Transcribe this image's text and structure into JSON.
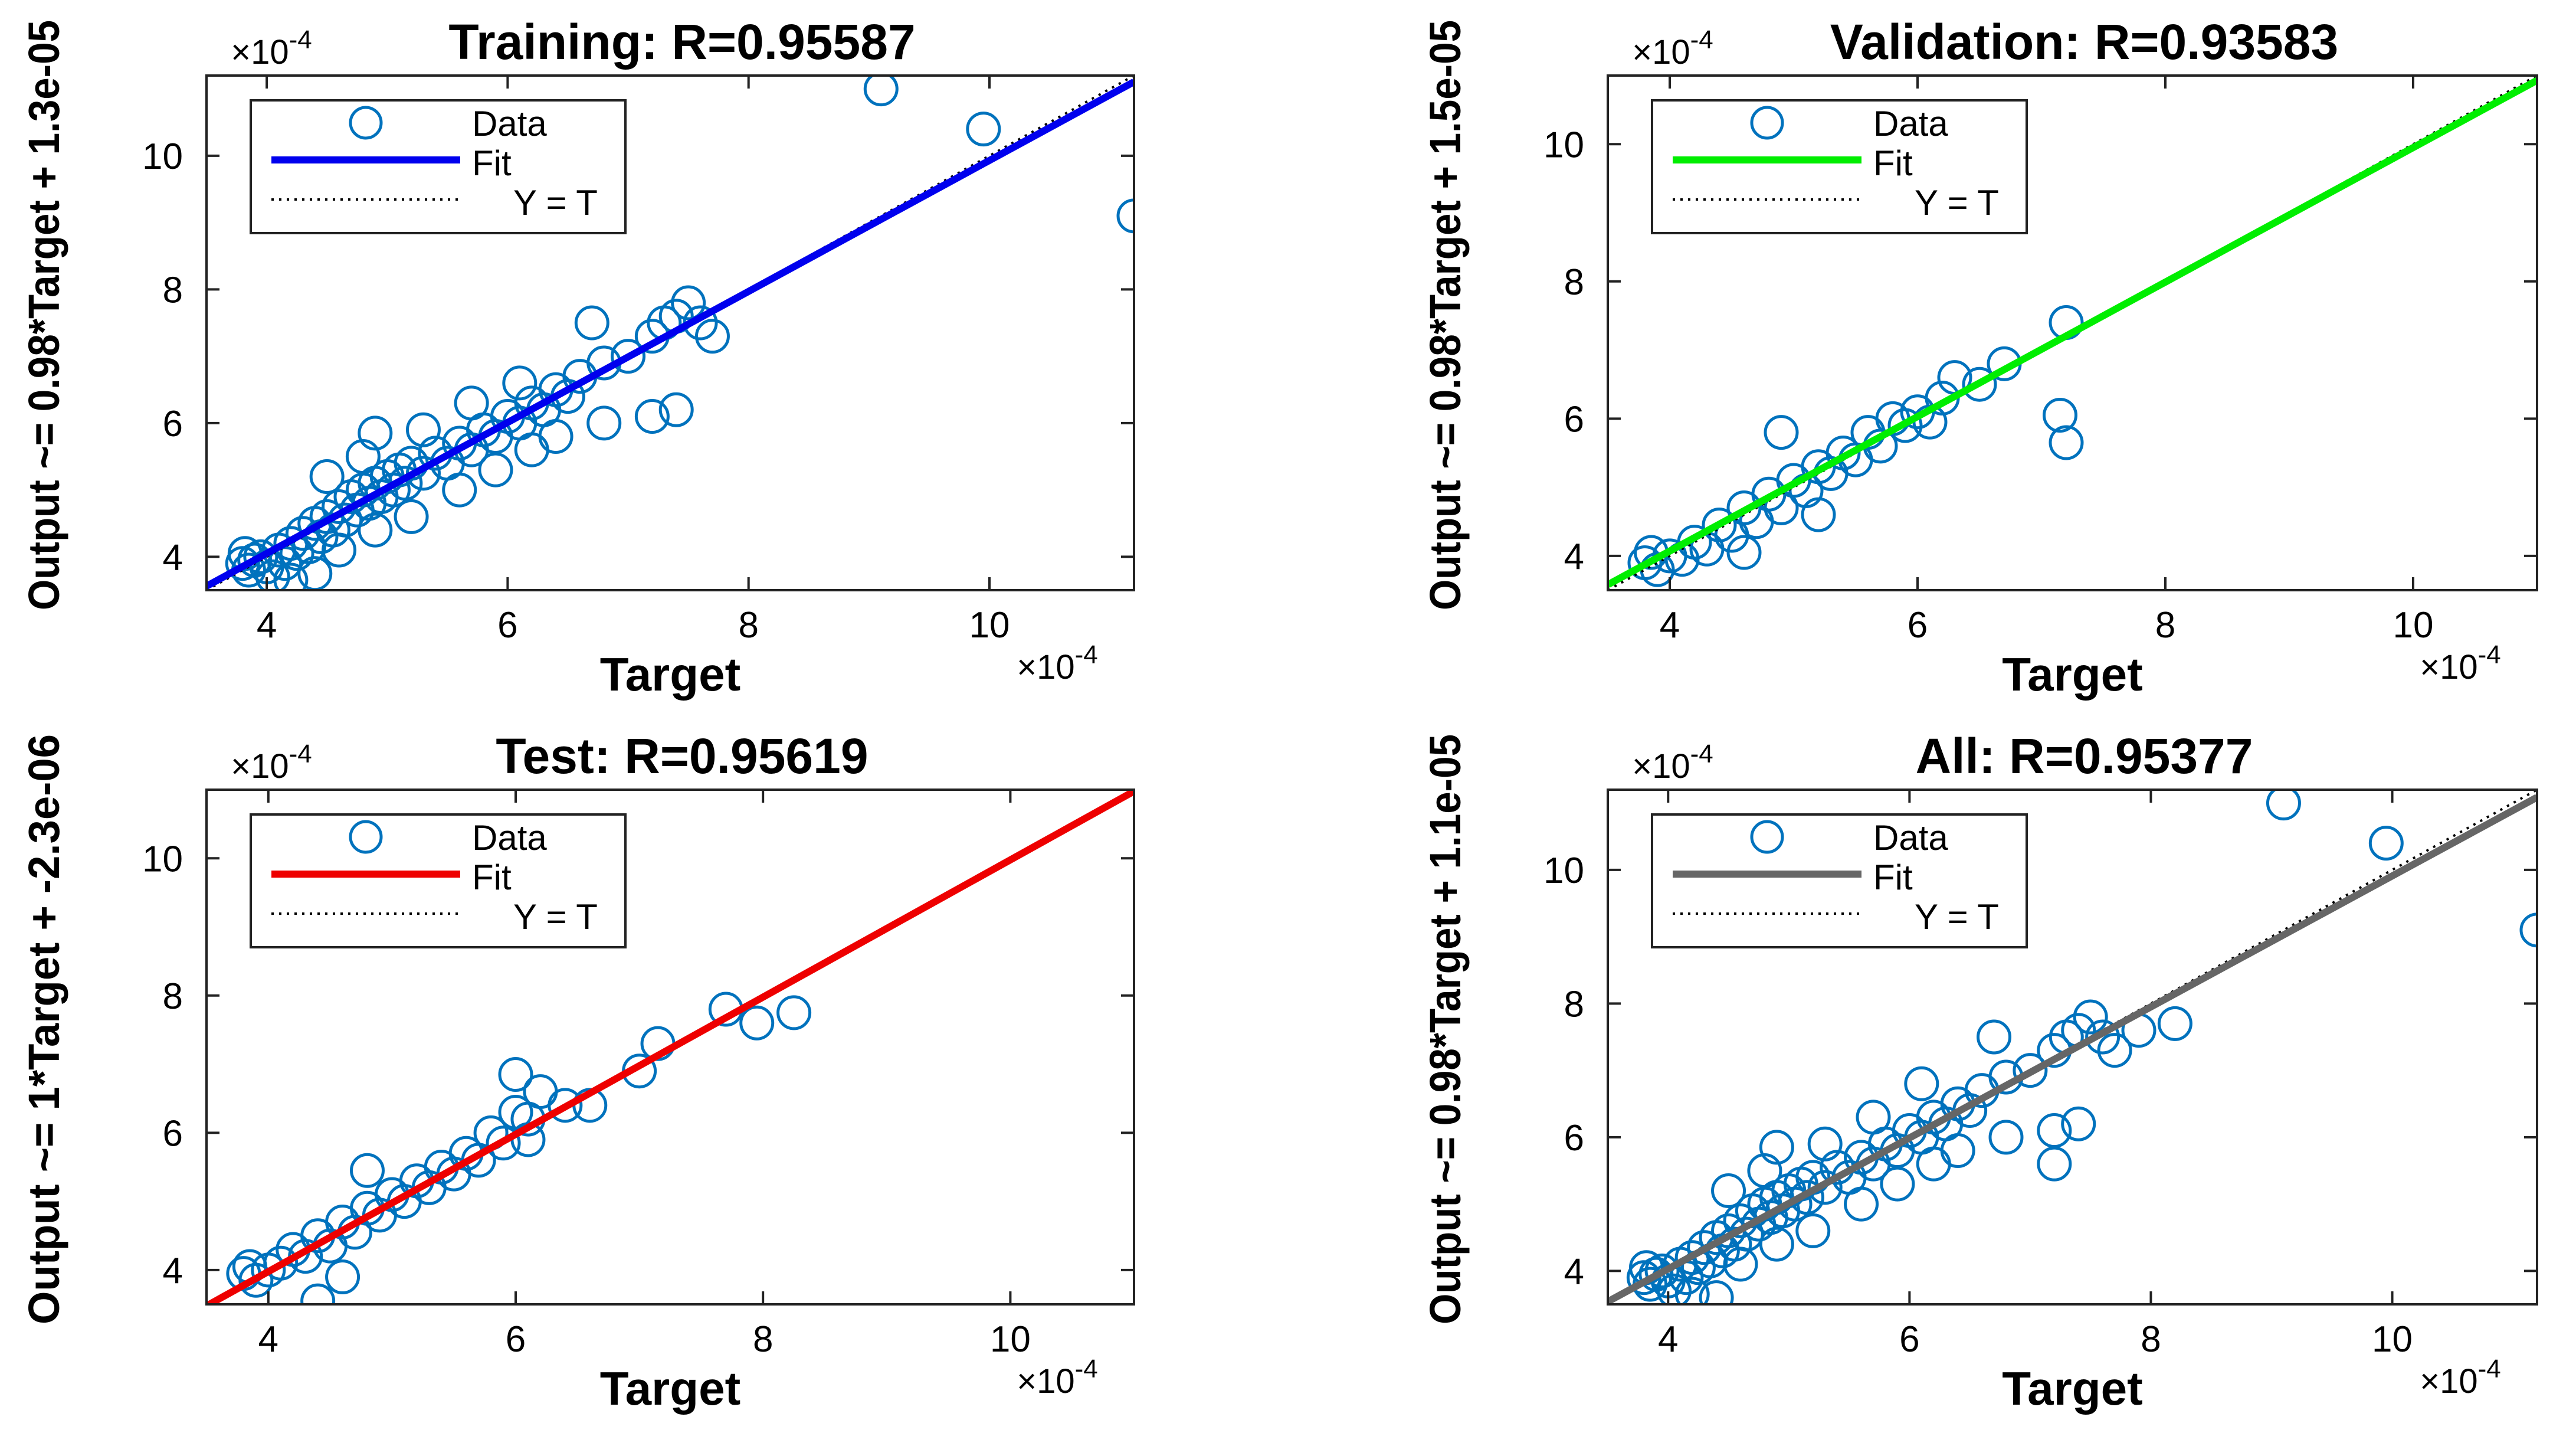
{
  "chart_data": [
    {
      "type": "scatter",
      "title": "Training: R=0.95587",
      "xlabel": "Target",
      "ylabel": "Output ~= 0.98*Target + 1.3e-05",
      "xlim": [
        3.5,
        11.2
      ],
      "ylim": [
        3.5,
        11.2
      ],
      "xticks": [
        "4",
        "6",
        "8",
        "10"
      ],
      "yticks": [
        "4",
        "6",
        "8",
        "10"
      ],
      "x_multiplier": "×10",
      "y_multiplier": "×10",
      "exponent": "-4",
      "fit": {
        "slope": 0.98,
        "intercept": 0.13
      },
      "fit_color": "#0000ee",
      "marker_color": "#0072bd",
      "legend": [
        "Data",
        "Fit",
        "Y = T"
      ],
      "points": [
        [
          3.8,
          3.9
        ],
        [
          3.82,
          4.05
        ],
        [
          3.85,
          3.8
        ],
        [
          3.9,
          3.95
        ],
        [
          3.95,
          4.0
        ],
        [
          4.0,
          3.85
        ],
        [
          4.05,
          3.7
        ],
        [
          4.1,
          4.1
        ],
        [
          4.15,
          3.9
        ],
        [
          4.2,
          4.2
        ],
        [
          4.25,
          4.05
        ],
        [
          4.3,
          4.35
        ],
        [
          4.35,
          4.15
        ],
        [
          4.4,
          4.5
        ],
        [
          4.45,
          4.3
        ],
        [
          4.5,
          4.6
        ],
        [
          4.55,
          4.4
        ],
        [
          4.6,
          4.75
        ],
        [
          4.65,
          4.55
        ],
        [
          4.7,
          4.9
        ],
        [
          4.75,
          4.7
        ],
        [
          4.8,
          5.0
        ],
        [
          4.85,
          4.8
        ],
        [
          4.9,
          5.1
        ],
        [
          4.95,
          4.9
        ],
        [
          5.0,
          5.2
        ],
        [
          5.05,
          5.0
        ],
        [
          5.1,
          5.3
        ],
        [
          5.15,
          5.1
        ],
        [
          5.2,
          5.4
        ],
        [
          5.3,
          5.25
        ],
        [
          5.4,
          5.55
        ],
        [
          5.5,
          5.4
        ],
        [
          5.6,
          5.7
        ],
        [
          5.7,
          5.6
        ],
        [
          5.8,
          5.9
        ],
        [
          5.9,
          5.8
        ],
        [
          6.0,
          6.1
        ],
        [
          6.1,
          6.0
        ],
        [
          6.2,
          6.3
        ],
        [
          6.3,
          6.2
        ],
        [
          6.4,
          6.5
        ],
        [
          6.5,
          6.4
        ],
        [
          6.6,
          6.7
        ],
        [
          6.8,
          6.9
        ],
        [
          7.0,
          7.0
        ],
        [
          7.2,
          7.3
        ],
        [
          7.3,
          7.5
        ],
        [
          7.4,
          7.6
        ],
        [
          7.5,
          7.8
        ],
        [
          7.6,
          7.5
        ],
        [
          7.7,
          7.3
        ],
        [
          6.7,
          7.5
        ],
        [
          7.2,
          6.1
        ],
        [
          7.4,
          6.2
        ],
        [
          4.9,
          5.85
        ],
        [
          4.2,
          3.65
        ],
        [
          4.4,
          3.75
        ],
        [
          4.6,
          4.1
        ],
        [
          4.9,
          4.4
        ],
        [
          5.2,
          4.6
        ],
        [
          5.6,
          5.0
        ],
        [
          5.9,
          5.3
        ],
        [
          6.2,
          5.6
        ],
        [
          6.4,
          5.8
        ],
        [
          6.8,
          6.0
        ],
        [
          4.5,
          5.2
        ],
        [
          4.8,
          5.5
        ],
        [
          5.3,
          5.9
        ],
        [
          5.7,
          6.3
        ],
        [
          6.1,
          6.6
        ],
        [
          9.1,
          11.0
        ],
        [
          9.95,
          10.4
        ],
        [
          11.2,
          9.1
        ]
      ]
    },
    {
      "type": "scatter",
      "title": "Validation: R=0.93583",
      "xlabel": "Target",
      "ylabel": "Output ~= 0.98*Target + 1.5e-05",
      "xlim": [
        3.5,
        11.0
      ],
      "ylim": [
        3.5,
        11.0
      ],
      "xticks": [
        "4",
        "6",
        "8",
        "10"
      ],
      "yticks": [
        "4",
        "6",
        "8",
        "10"
      ],
      "x_multiplier": "×10",
      "y_multiplier": "×10",
      "exponent": "-4",
      "fit": {
        "slope": 0.98,
        "intercept": 0.15
      },
      "fit_color": "#00ee00",
      "marker_color": "#0072bd",
      "legend": [
        "Data",
        "Fit",
        "Y = T"
      ],
      "points": [
        [
          3.8,
          3.9
        ],
        [
          3.85,
          4.05
        ],
        [
          3.9,
          3.8
        ],
        [
          4.0,
          4.0
        ],
        [
          4.1,
          3.95
        ],
        [
          4.2,
          4.2
        ],
        [
          4.3,
          4.1
        ],
        [
          4.4,
          4.45
        ],
        [
          4.5,
          4.3
        ],
        [
          4.6,
          4.7
        ],
        [
          4.7,
          4.5
        ],
        [
          4.8,
          4.9
        ],
        [
          4.9,
          4.7
        ],
        [
          5.0,
          5.1
        ],
        [
          5.1,
          4.95
        ],
        [
          5.2,
          5.3
        ],
        [
          5.3,
          5.2
        ],
        [
          5.4,
          5.5
        ],
        [
          5.5,
          5.4
        ],
        [
          5.6,
          5.8
        ],
        [
          5.7,
          5.6
        ],
        [
          5.8,
          6.0
        ],
        [
          5.9,
          5.9
        ],
        [
          6.0,
          6.1
        ],
        [
          6.2,
          6.3
        ],
        [
          6.3,
          6.6
        ],
        [
          6.5,
          6.5
        ],
        [
          6.7,
          6.8
        ],
        [
          6.1,
          5.95
        ],
        [
          4.9,
          5.8
        ],
        [
          4.6,
          4.05
        ],
        [
          5.2,
          4.6
        ],
        [
          7.2,
          7.4
        ],
        [
          7.15,
          6.05
        ],
        [
          7.2,
          5.65
        ]
      ]
    },
    {
      "type": "scatter",
      "title": "Test: R=0.95619",
      "xlabel": "Target",
      "ylabel": "Output ~= 1*Target + -2.3e-06",
      "xlim": [
        3.5,
        11.0
      ],
      "ylim": [
        3.5,
        11.0
      ],
      "xticks": [
        "4",
        "6",
        "8",
        "10"
      ],
      "yticks": [
        "4",
        "6",
        "8",
        "10"
      ],
      "x_multiplier": "×10",
      "y_multiplier": "×10",
      "exponent": "-4",
      "fit": {
        "slope": 1.0,
        "intercept": -0.023
      },
      "fit_color": "#ee0000",
      "marker_color": "#0072bd",
      "legend": [
        "Data",
        "Fit",
        "Y = T"
      ],
      "points": [
        [
          3.8,
          3.95
        ],
        [
          3.85,
          4.05
        ],
        [
          3.9,
          3.85
        ],
        [
          4.0,
          4.0
        ],
        [
          4.1,
          4.1
        ],
        [
          4.2,
          4.3
        ],
        [
          4.3,
          4.2
        ],
        [
          4.4,
          4.5
        ],
        [
          4.5,
          4.35
        ],
        [
          4.6,
          4.7
        ],
        [
          4.7,
          4.55
        ],
        [
          4.8,
          4.9
        ],
        [
          4.9,
          4.8
        ],
        [
          5.0,
          5.1
        ],
        [
          5.1,
          5.0
        ],
        [
          5.2,
          5.3
        ],
        [
          5.3,
          5.2
        ],
        [
          5.4,
          5.5
        ],
        [
          5.5,
          5.4
        ],
        [
          5.6,
          5.7
        ],
        [
          5.7,
          5.6
        ],
        [
          5.8,
          6.0
        ],
        [
          5.9,
          5.85
        ],
        [
          6.0,
          6.3
        ],
        [
          6.1,
          6.2
        ],
        [
          6.2,
          6.6
        ],
        [
          6.0,
          6.85
        ],
        [
          6.4,
          6.4
        ],
        [
          6.6,
          6.4
        ],
        [
          6.1,
          5.9
        ],
        [
          4.4,
          3.55
        ],
        [
          4.6,
          3.9
        ],
        [
          4.8,
          5.45
        ],
        [
          7.0,
          6.9
        ],
        [
          7.15,
          7.3
        ],
        [
          7.7,
          7.8
        ],
        [
          7.95,
          7.6
        ],
        [
          8.25,
          7.75
        ]
      ]
    },
    {
      "type": "scatter",
      "title": "All: R=0.95377",
      "xlabel": "Target",
      "ylabel": "Output ~= 0.98*Target + 1.1e-05",
      "xlim": [
        3.5,
        11.2
      ],
      "ylim": [
        3.5,
        11.2
      ],
      "xticks": [
        "4",
        "6",
        "8",
        "10"
      ],
      "yticks": [
        "4",
        "6",
        "8",
        "10"
      ],
      "x_multiplier": "×10",
      "y_multiplier": "×10",
      "exponent": "-4",
      "fit": {
        "slope": 0.98,
        "intercept": 0.11
      },
      "fit_color": "#666666",
      "marker_color": "#0072bd",
      "legend": [
        "Data",
        "Fit",
        "Y = T"
      ],
      "points": [
        [
          3.8,
          3.9
        ],
        [
          3.82,
          4.05
        ],
        [
          3.85,
          3.8
        ],
        [
          3.9,
          3.95
        ],
        [
          3.95,
          4.0
        ],
        [
          4.0,
          3.85
        ],
        [
          4.05,
          3.7
        ],
        [
          4.1,
          4.1
        ],
        [
          4.15,
          3.9
        ],
        [
          4.2,
          4.2
        ],
        [
          4.25,
          4.05
        ],
        [
          4.3,
          4.35
        ],
        [
          4.35,
          4.15
        ],
        [
          4.4,
          4.5
        ],
        [
          4.45,
          4.3
        ],
        [
          4.5,
          4.6
        ],
        [
          4.55,
          4.4
        ],
        [
          4.6,
          4.75
        ],
        [
          4.65,
          4.55
        ],
        [
          4.7,
          4.9
        ],
        [
          4.75,
          4.7
        ],
        [
          4.8,
          5.0
        ],
        [
          4.85,
          4.8
        ],
        [
          4.9,
          5.1
        ],
        [
          4.95,
          4.9
        ],
        [
          5.0,
          5.2
        ],
        [
          5.05,
          5.0
        ],
        [
          5.1,
          5.3
        ],
        [
          5.15,
          5.1
        ],
        [
          5.2,
          5.4
        ],
        [
          5.3,
          5.25
        ],
        [
          5.4,
          5.55
        ],
        [
          5.5,
          5.4
        ],
        [
          5.6,
          5.7
        ],
        [
          5.7,
          5.6
        ],
        [
          5.8,
          5.9
        ],
        [
          5.9,
          5.8
        ],
        [
          6.0,
          6.1
        ],
        [
          6.1,
          6.0
        ],
        [
          6.2,
          6.3
        ],
        [
          6.3,
          6.2
        ],
        [
          6.4,
          6.5
        ],
        [
          6.5,
          6.4
        ],
        [
          6.6,
          6.7
        ],
        [
          6.8,
          6.9
        ],
        [
          7.0,
          7.0
        ],
        [
          7.2,
          7.3
        ],
        [
          7.3,
          7.5
        ],
        [
          7.4,
          7.6
        ],
        [
          7.5,
          7.8
        ],
        [
          7.6,
          7.5
        ],
        [
          7.7,
          7.3
        ],
        [
          6.7,
          7.5
        ],
        [
          7.2,
          6.1
        ],
        [
          7.4,
          6.2
        ],
        [
          7.2,
          5.6
        ],
        [
          8.2,
          7.7
        ],
        [
          7.9,
          7.6
        ],
        [
          4.9,
          5.85
        ],
        [
          4.2,
          3.65
        ],
        [
          4.4,
          3.6
        ],
        [
          4.6,
          4.1
        ],
        [
          4.9,
          4.4
        ],
        [
          5.2,
          4.6
        ],
        [
          5.6,
          5.0
        ],
        [
          5.9,
          5.3
        ],
        [
          6.2,
          5.6
        ],
        [
          6.4,
          5.8
        ],
        [
          6.8,
          6.0
        ],
        [
          4.5,
          5.2
        ],
        [
          4.8,
          5.5
        ],
        [
          5.3,
          5.9
        ],
        [
          5.7,
          6.3
        ],
        [
          6.1,
          6.8
        ],
        [
          9.1,
          11.0
        ],
        [
          9.95,
          10.4
        ],
        [
          11.2,
          9.1
        ]
      ]
    }
  ]
}
